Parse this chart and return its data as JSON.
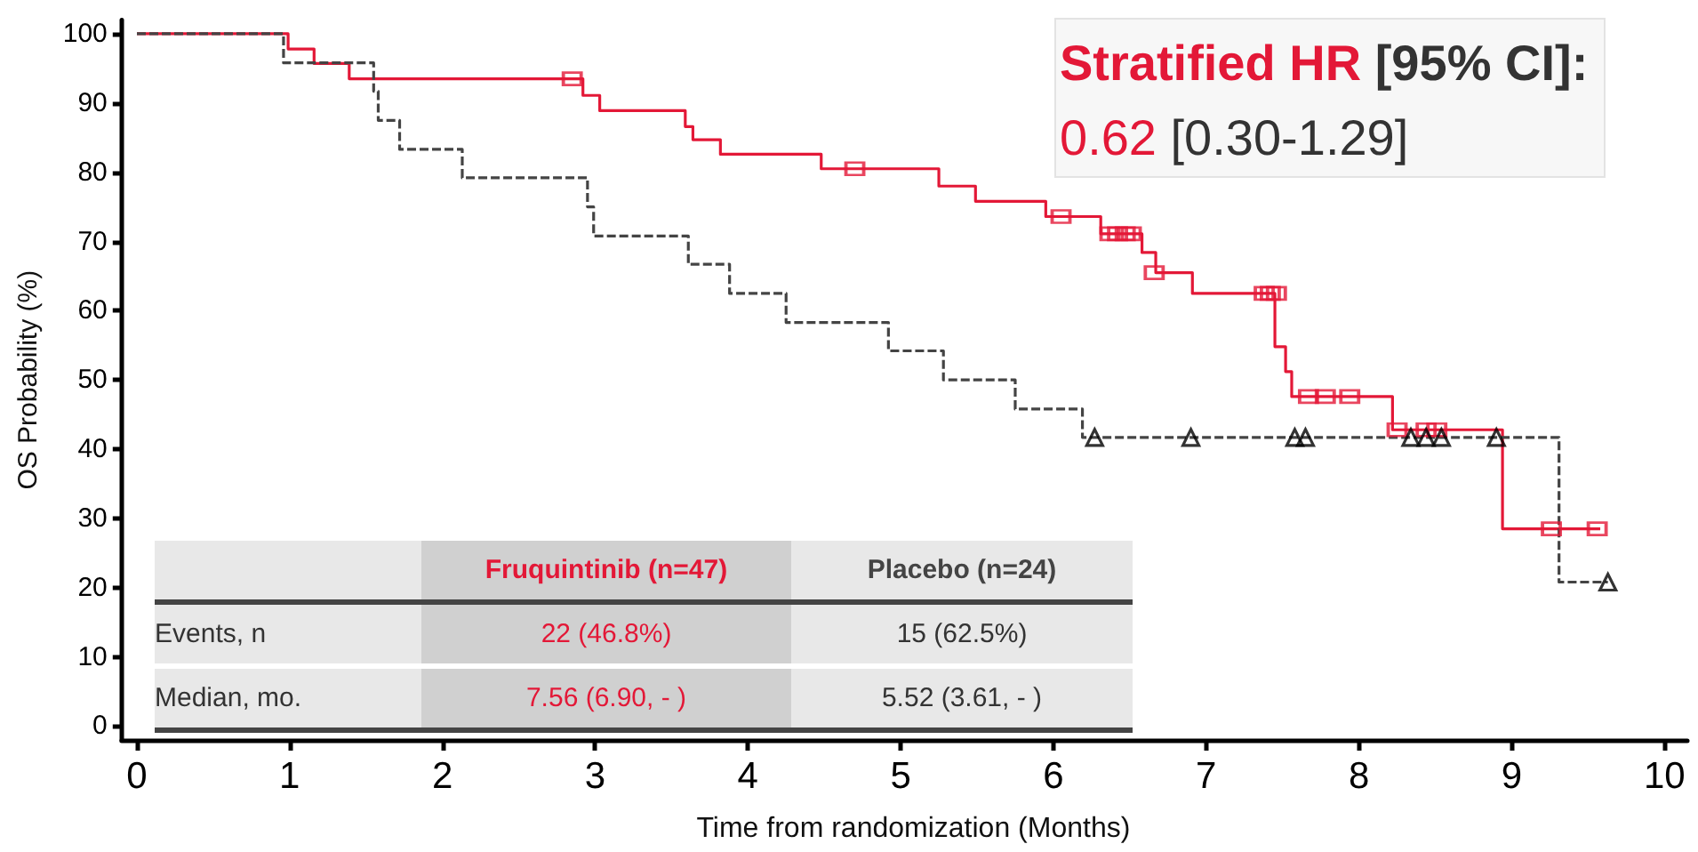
{
  "chart_data": {
    "type": "step",
    "xlabel": "Time from randomization (Months)",
    "ylabel": "OS Probability (%)",
    "xlim": [
      -0.1,
      10.15
    ],
    "xticks": [
      0,
      1,
      2,
      3,
      4,
      5,
      6,
      7,
      8,
      9,
      10
    ],
    "ylim": [
      -2,
      102
    ],
    "yticks": [
      0,
      10,
      20,
      30,
      40,
      50,
      60,
      70,
      80,
      90,
      100
    ],
    "grid": false,
    "legend": false,
    "series": [
      {
        "name": "Fruquintinib  (n=47)",
        "color": "#e31837",
        "line_style": "solid",
        "marker": "none",
        "x": [
          0,
          0.99,
          1.16,
          1.39,
          2.92,
          3.03,
          3.59,
          3.64,
          3.82,
          4.48,
          5.25,
          5.49,
          5.95,
          6.31,
          6.58,
          6.67,
          6.91,
          7.45,
          7.52,
          7.56,
          8.22,
          8.94,
          9.58
        ],
        "values": [
          100,
          97.8,
          95.7,
          93.5,
          91.1,
          88.9,
          86.6,
          84.7,
          82.6,
          80.5,
          78.0,
          75.8,
          73.6,
          71.1,
          68.4,
          65.5,
          62.5,
          54.8,
          51.2,
          47.6,
          42.8,
          28.5,
          28.5
        ]
      },
      {
        "name": "Placebo (n=24)",
        "color": "#444444",
        "line_style": "dashed",
        "marker": "none",
        "x": [
          0,
          0.96,
          1.55,
          1.58,
          1.72,
          2.13,
          2.95,
          2.99,
          3.61,
          3.88,
          4.25,
          4.92,
          5.28,
          5.75,
          6.19,
          9.31,
          9.63
        ],
        "values": [
          100,
          95.8,
          91.7,
          87.5,
          83.3,
          79.2,
          75.0,
          70.8,
          66.7,
          62.5,
          58.3,
          54.2,
          50.0,
          45.8,
          41.7,
          20.8,
          20.8
        ]
      },
      {
        "type": "scatter",
        "color": "#e31837",
        "marker": "square",
        "x": [
          2.85,
          4.7,
          6.05,
          6.37,
          6.42,
          6.47,
          6.51,
          6.66,
          7.38,
          7.42,
          7.46,
          7.67,
          7.78,
          7.94,
          8.25,
          8.44,
          8.51,
          9.26,
          9.56
        ],
        "values": [
          93.5,
          80.5,
          73.6,
          71.1,
          71.1,
          71.1,
          71.1,
          65.5,
          62.5,
          62.5,
          62.5,
          47.6,
          47.6,
          47.6,
          42.8,
          42.8,
          42.8,
          28.5,
          28.5
        ]
      },
      {
        "type": "scatter",
        "color": "#000000",
        "marker": "triangle",
        "x": [
          6.27,
          6.9,
          7.58,
          7.65,
          8.34,
          8.44,
          8.54,
          8.9,
          9.63
        ],
        "values": [
          41.7,
          41.7,
          41.7,
          41.7,
          41.7,
          41.7,
          41.7,
          41.7,
          20.8
        ]
      }
    ],
    "annotations": [
      "Stratified HR",
      "[95% CI]:",
      "0.62",
      "[0.30-1.29]",
      "Events, n",
      "22 (46.8%)",
      "15 (62.5%)",
      "Median, mo.",
      "7.56 (6.90, - )",
      "5.52 (3.61, - )"
    ]
  }
}
